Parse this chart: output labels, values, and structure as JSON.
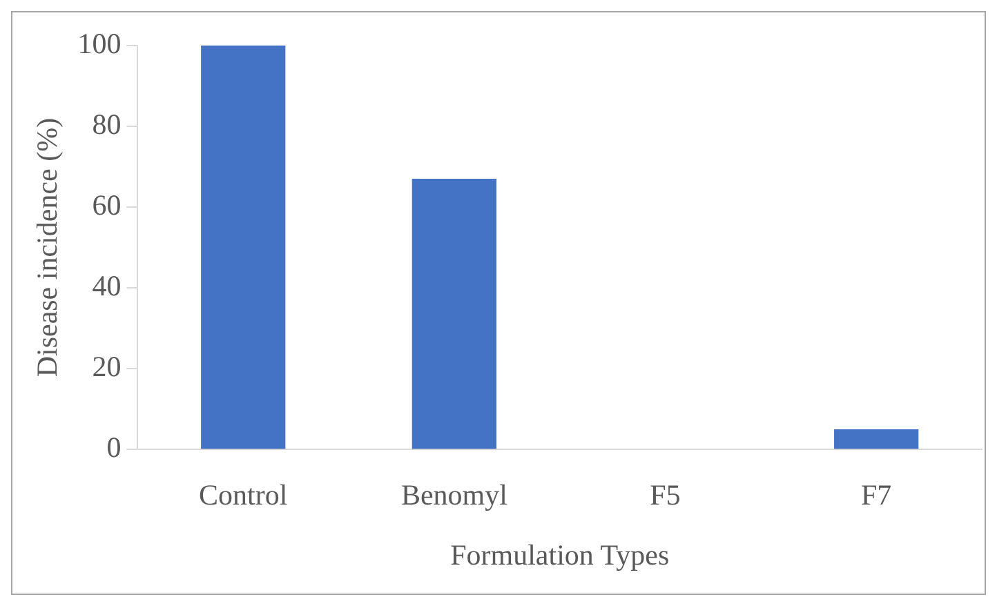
{
  "chart_data": {
    "type": "bar",
    "xlabel": "Formulation Types",
    "ylabel": "Disease incidence (%)",
    "categories": [
      "Control",
      "Benomyl",
      "F5",
      "F7"
    ],
    "values": [
      100,
      67,
      0,
      5
    ],
    "color": "#4472c4",
    "ylim": [
      0,
      100
    ],
    "yticks": [
      0,
      20,
      40,
      60,
      80,
      100
    ],
    "grid": false,
    "legend": false
  }
}
